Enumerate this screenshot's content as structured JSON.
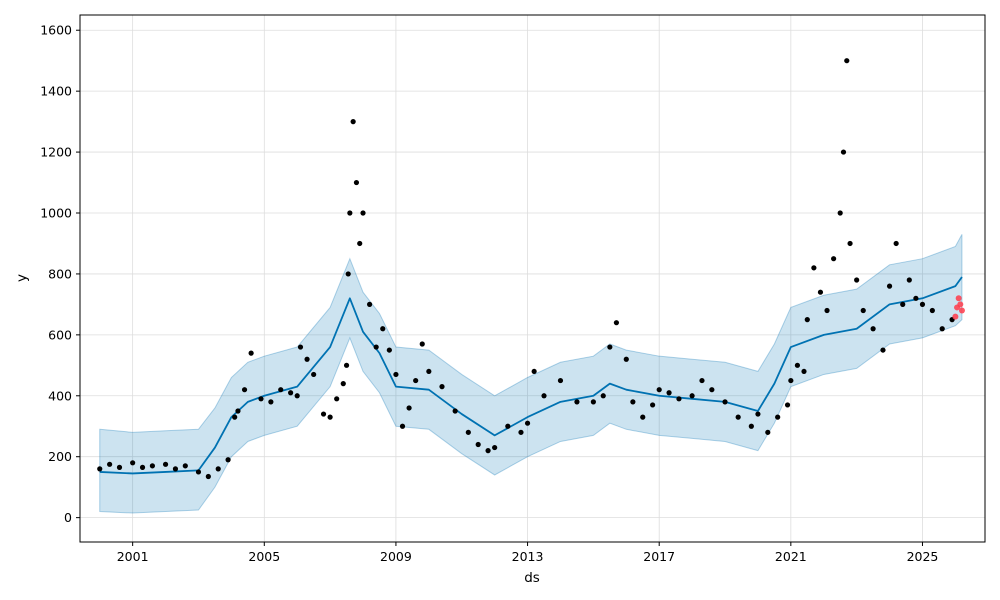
{
  "chart_data": {
    "type": "scatter",
    "title": "",
    "xlabel": "ds",
    "ylabel": "y",
    "grid": true,
    "legend": "none",
    "xlim": [
      1999.4,
      2026.9
    ],
    "ylim": [
      -80,
      1650
    ],
    "x_ticks": [
      2001,
      2005,
      2009,
      2013,
      2017,
      2021,
      2025
    ],
    "x_tick_labels": [
      "2001",
      "2005",
      "2009",
      "2013",
      "2017",
      "2021",
      "2025"
    ],
    "y_ticks": [
      0,
      200,
      400,
      600,
      800,
      1000,
      1200,
      1400,
      1600
    ],
    "y_tick_labels": [
      "0",
      "200",
      "400",
      "600",
      "800",
      "1000",
      "1200",
      "1400",
      "1600"
    ],
    "colors": {
      "observed": "#000000",
      "forecast_line": "#0072B2",
      "uncertainty_band": "#0072B2",
      "recent_points": "#ff3b4a",
      "grid": "#dddddd"
    },
    "series": [
      {
        "kind": "forecast",
        "x": [
          2000.0,
          2001.0,
          2002.0,
          2003.0,
          2003.5,
          2004.0,
          2004.5,
          2005.0,
          2006.0,
          2007.0,
          2007.6,
          2008.0,
          2008.5,
          2009.0,
          2010.0,
          2011.0,
          2012.0,
          2012.5,
          2013.0,
          2014.0,
          2015.0,
          2015.5,
          2016.0,
          2017.0,
          2018.0,
          2019.0,
          2020.0,
          2020.5,
          2021.0,
          2022.0,
          2023.0,
          2024.0,
          2025.0,
          2026.0,
          2026.2
        ],
        "y": [
          150,
          145,
          150,
          155,
          230,
          330,
          380,
          400,
          430,
          560,
          720,
          610,
          540,
          430,
          420,
          340,
          270,
          300,
          330,
          380,
          400,
          440,
          420,
          400,
          390,
          380,
          350,
          440,
          560,
          600,
          620,
          700,
          720,
          760,
          790
        ],
        "lower": [
          20,
          15,
          20,
          25,
          100,
          200,
          250,
          270,
          300,
          430,
          590,
          480,
          410,
          300,
          290,
          210,
          140,
          170,
          200,
          250,
          270,
          310,
          290,
          270,
          260,
          250,
          220,
          310,
          430,
          470,
          490,
          570,
          590,
          630,
          650
        ],
        "upper": [
          290,
          280,
          285,
          290,
          360,
          460,
          510,
          530,
          560,
          690,
          850,
          740,
          670,
          560,
          550,
          470,
          400,
          430,
          460,
          510,
          530,
          570,
          550,
          530,
          520,
          510,
          480,
          570,
          690,
          730,
          750,
          830,
          850,
          890,
          930
        ]
      },
      {
        "kind": "observed",
        "x": [
          2000.0,
          2000.3,
          2000.6,
          2001.0,
          2001.3,
          2001.6,
          2002.0,
          2002.3,
          2002.6,
          2003.0,
          2003.3,
          2003.6,
          2003.9,
          2004.1,
          2004.2,
          2004.4,
          2004.6,
          2004.9,
          2005.2,
          2005.5,
          2005.8,
          2006.0,
          2006.1,
          2006.3,
          2006.5,
          2006.8,
          2007.0,
          2007.2,
          2007.4,
          2007.5,
          2007.55,
          2007.6,
          2007.7,
          2007.8,
          2007.9,
          2008.0,
          2008.2,
          2008.4,
          2008.6,
          2008.8,
          2009.0,
          2009.2,
          2009.4,
          2009.6,
          2009.8,
          2010.0,
          2010.4,
          2010.8,
          2011.2,
          2011.5,
          2011.8,
          2012.0,
          2012.4,
          2012.8,
          2013.0,
          2013.2,
          2013.5,
          2014.0,
          2014.5,
          2015.0,
          2015.3,
          2015.5,
          2015.7,
          2016.0,
          2016.2,
          2016.5,
          2016.8,
          2017.0,
          2017.3,
          2017.6,
          2018.0,
          2018.3,
          2018.6,
          2019.0,
          2019.4,
          2019.8,
          2020.0,
          2020.3,
          2020.6,
          2020.9,
          2021.0,
          2021.2,
          2021.4,
          2021.5,
          2021.7,
          2021.9,
          2022.1,
          2022.3,
          2022.5,
          2022.6,
          2022.7,
          2022.8,
          2023.0,
          2023.2,
          2023.5,
          2023.8,
          2024.0,
          2024.2,
          2024.4,
          2024.6,
          2024.8,
          2025.0,
          2025.3,
          2025.6,
          2025.9
        ],
        "y": [
          160,
          175,
          165,
          180,
          165,
          170,
          175,
          160,
          170,
          150,
          135,
          160,
          190,
          330,
          350,
          420,
          540,
          390,
          380,
          420,
          410,
          400,
          560,
          520,
          470,
          340,
          330,
          390,
          440,
          500,
          800,
          1000,
          1300,
          1100,
          900,
          1000,
          700,
          560,
          620,
          550,
          470,
          300,
          360,
          450,
          570,
          480,
          430,
          350,
          280,
          240,
          220,
          230,
          300,
          280,
          310,
          480,
          400,
          450,
          380,
          380,
          400,
          560,
          640,
          520,
          380,
          330,
          370,
          420,
          410,
          390,
          400,
          450,
          420,
          380,
          330,
          300,
          340,
          280,
          330,
          370,
          450,
          500,
          480,
          650,
          820,
          740,
          680,
          850,
          1000,
          1200,
          1500,
          900,
          780,
          680,
          620,
          550,
          760,
          900,
          700,
          780,
          720,
          700,
          680,
          620,
          650
        ],
        "radius": 2.6
      },
      {
        "kind": "recent",
        "x": [
          2026.0,
          2026.05,
          2026.1,
          2026.15,
          2026.2
        ],
        "y": [
          660,
          690,
          720,
          700,
          680
        ],
        "radius": 3
      }
    ]
  }
}
